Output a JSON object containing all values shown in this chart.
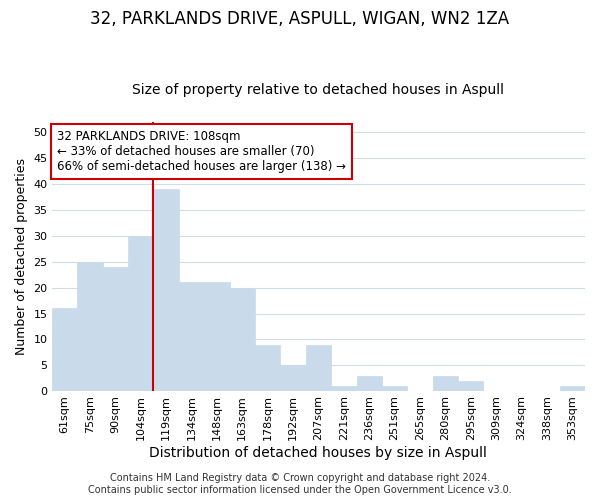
{
  "title": "32, PARKLANDS DRIVE, ASPULL, WIGAN, WN2 1ZA",
  "subtitle": "Size of property relative to detached houses in Aspull",
  "xlabel": "Distribution of detached houses by size in Aspull",
  "ylabel": "Number of detached properties",
  "categories": [
    "61sqm",
    "75sqm",
    "90sqm",
    "104sqm",
    "119sqm",
    "134sqm",
    "148sqm",
    "163sqm",
    "178sqm",
    "192sqm",
    "207sqm",
    "221sqm",
    "236sqm",
    "251sqm",
    "265sqm",
    "280sqm",
    "295sqm",
    "309sqm",
    "324sqm",
    "338sqm",
    "353sqm"
  ],
  "values": [
    16,
    25,
    24,
    30,
    39,
    21,
    21,
    20,
    9,
    5,
    9,
    1,
    3,
    1,
    0,
    3,
    2,
    0,
    0,
    0,
    1
  ],
  "bar_color": "#c9daea",
  "bar_edgecolor": "#c9daea",
  "vline_x_index": 3,
  "vline_color": "#cc0000",
  "annotation_line1": "32 PARKLANDS DRIVE: 108sqm",
  "annotation_line2": "← 33% of detached houses are smaller (70)",
  "annotation_line3": "66% of semi-detached houses are larger (138) →",
  "annotation_box_edgecolor": "#cc0000",
  "ylim": [
    0,
    52
  ],
  "yticks": [
    0,
    5,
    10,
    15,
    20,
    25,
    30,
    35,
    40,
    45,
    50
  ],
  "footer_line1": "Contains HM Land Registry data © Crown copyright and database right 2024.",
  "footer_line2": "Contains public sector information licensed under the Open Government Licence v3.0.",
  "background_color": "#ffffff",
  "grid_color": "#d0dce8",
  "title_fontsize": 12,
  "subtitle_fontsize": 10,
  "tick_fontsize": 8,
  "ylabel_fontsize": 9,
  "xlabel_fontsize": 10,
  "annotation_fontsize": 8.5,
  "footer_fontsize": 7
}
